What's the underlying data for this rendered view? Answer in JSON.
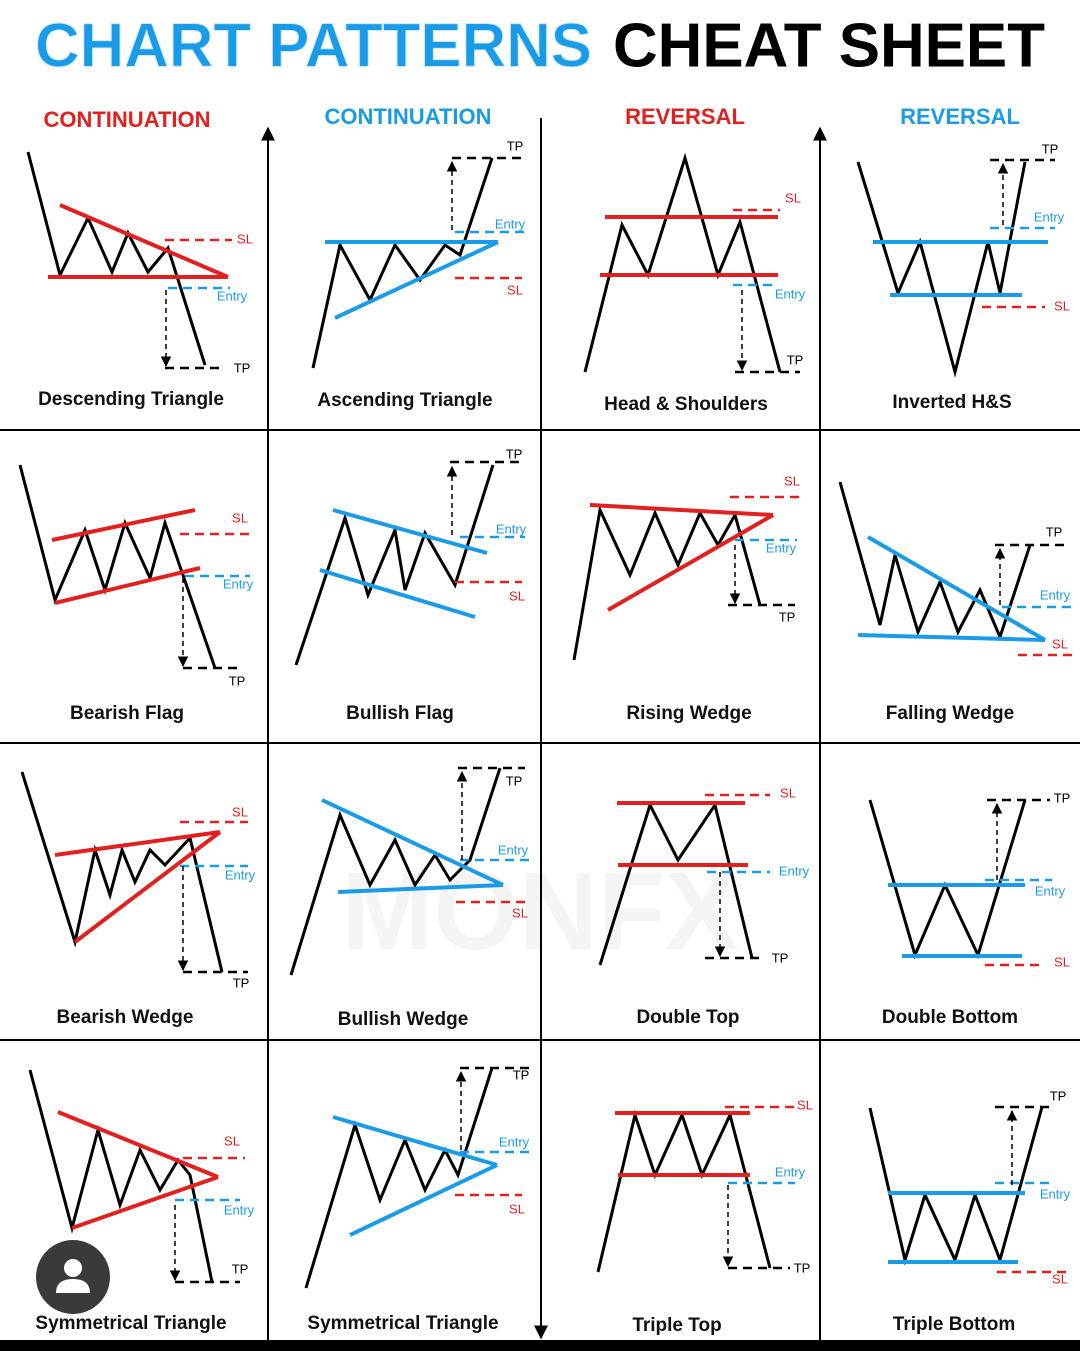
{
  "header": {
    "title_part1": "CHART PATTERNS",
    "title_part2": "CHEAT SHEET"
  },
  "columns": [
    {
      "label": "CONTINUATION"
    },
    {
      "label": "CONTINUATION"
    },
    {
      "label": "REVERSAL"
    },
    {
      "label": "REVERSAL"
    }
  ],
  "watermark": "MONFX",
  "patterns": [
    {
      "name": "Descending Triangle",
      "sl": "SL",
      "entry": "Entry",
      "tp": "TP"
    },
    {
      "name": "Ascending Triangle",
      "sl": "SL",
      "entry": "Entry",
      "tp": "TP"
    },
    {
      "name": "Head & Shoulders",
      "sl": "SL",
      "entry": "Entry",
      "tp": "TP"
    },
    {
      "name": "Inverted H&S",
      "sl": "SL",
      "entry": "Entry",
      "tp": "TP"
    },
    {
      "name": "Bearish Flag",
      "sl": "SL",
      "entry": "Entry",
      "tp": "TP"
    },
    {
      "name": "Bullish Flag",
      "sl": "SL",
      "entry": "Entry",
      "tp": "TP"
    },
    {
      "name": "Rising Wedge",
      "sl": "SL",
      "entry": "Entry",
      "tp": "TP"
    },
    {
      "name": "Falling Wedge",
      "sl": "SL",
      "entry": "Entry",
      "tp": "TP"
    },
    {
      "name": "Bearish Wedge",
      "sl": "SL",
      "entry": "Entry",
      "tp": "TP"
    },
    {
      "name": "Bullish Wedge",
      "sl": "SL",
      "entry": "Entry",
      "tp": "TP"
    },
    {
      "name": "Double Top",
      "sl": "SL",
      "entry": "Entry",
      "tp": "TP"
    },
    {
      "name": "Double Bottom",
      "sl": "SL",
      "entry": "Entry",
      "tp": "TP"
    },
    {
      "name": "Symmetrical Triangle",
      "sl": "SL",
      "entry": "Entry",
      "tp": "TP"
    },
    {
      "name": "Symmetrical Triangle",
      "sl": "SL",
      "entry": "Entry",
      "tp": "TP"
    },
    {
      "name": "Triple Top",
      "sl": "SL",
      "entry": "Entry",
      "tp": "TP"
    },
    {
      "name": "Triple Bottom",
      "sl": "SL",
      "entry": "Entry",
      "tp": "TP"
    }
  ]
}
